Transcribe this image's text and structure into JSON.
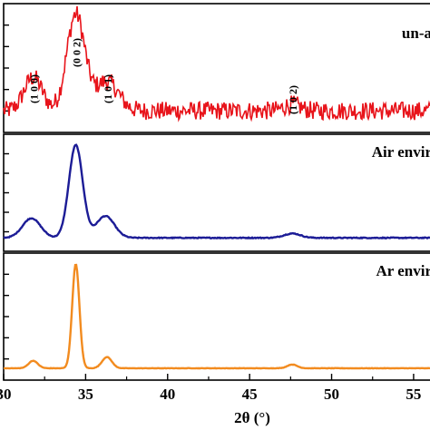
{
  "chart_data": {
    "type": "line",
    "xlabel": "2θ (°)",
    "xlim": [
      30,
      56
    ],
    "x_ticks": [
      30,
      35,
      40,
      45,
      50,
      55
    ],
    "x_tick_labels": [
      "30",
      "35",
      "40",
      "45",
      "50",
      "55"
    ],
    "panels": [
      {
        "name": "un-annealed",
        "label": "un-a",
        "color": "#e8141b",
        "noise": 2.2,
        "baseline": 3,
        "peaks": [
          {
            "x": 31.8,
            "h": 8,
            "w": 0.55
          },
          {
            "x": 34.4,
            "h": 23,
            "w": 0.55
          },
          {
            "x": 36.3,
            "h": 7,
            "w": 0.7
          },
          {
            "x": 47.6,
            "h": 1.5,
            "w": 0.5
          }
        ],
        "annotations": [
          {
            "x": 31.8,
            "text": "(1 0 0)"
          },
          {
            "x": 34.4,
            "text": "(0 0 2)"
          },
          {
            "x": 36.3,
            "text": "(1 0 1)"
          },
          {
            "x": 47.6,
            "text": "(1 0 2)"
          }
        ]
      },
      {
        "name": "air",
        "label": "Air envir",
        "color": "#1c1c96",
        "noise": 0.4,
        "baseline": 4,
        "peaks": [
          {
            "x": 31.7,
            "h": 18,
            "w": 0.55
          },
          {
            "x": 34.4,
            "h": 85,
            "w": 0.42
          },
          {
            "x": 36.2,
            "h": 20,
            "w": 0.55
          },
          {
            "x": 47.6,
            "h": 4,
            "w": 0.5
          }
        ],
        "annotations": []
      },
      {
        "name": "ar",
        "label": "Ar envir",
        "color": "#f28b1f",
        "noise": 0.2,
        "baseline": 3,
        "peaks": [
          {
            "x": 31.8,
            "h": 8,
            "w": 0.28
          },
          {
            "x": 34.4,
            "h": 112,
            "w": 0.22
          },
          {
            "x": 36.3,
            "h": 12,
            "w": 0.3
          },
          {
            "x": 47.6,
            "h": 4,
            "w": 0.3
          }
        ],
        "annotations": []
      }
    ]
  }
}
